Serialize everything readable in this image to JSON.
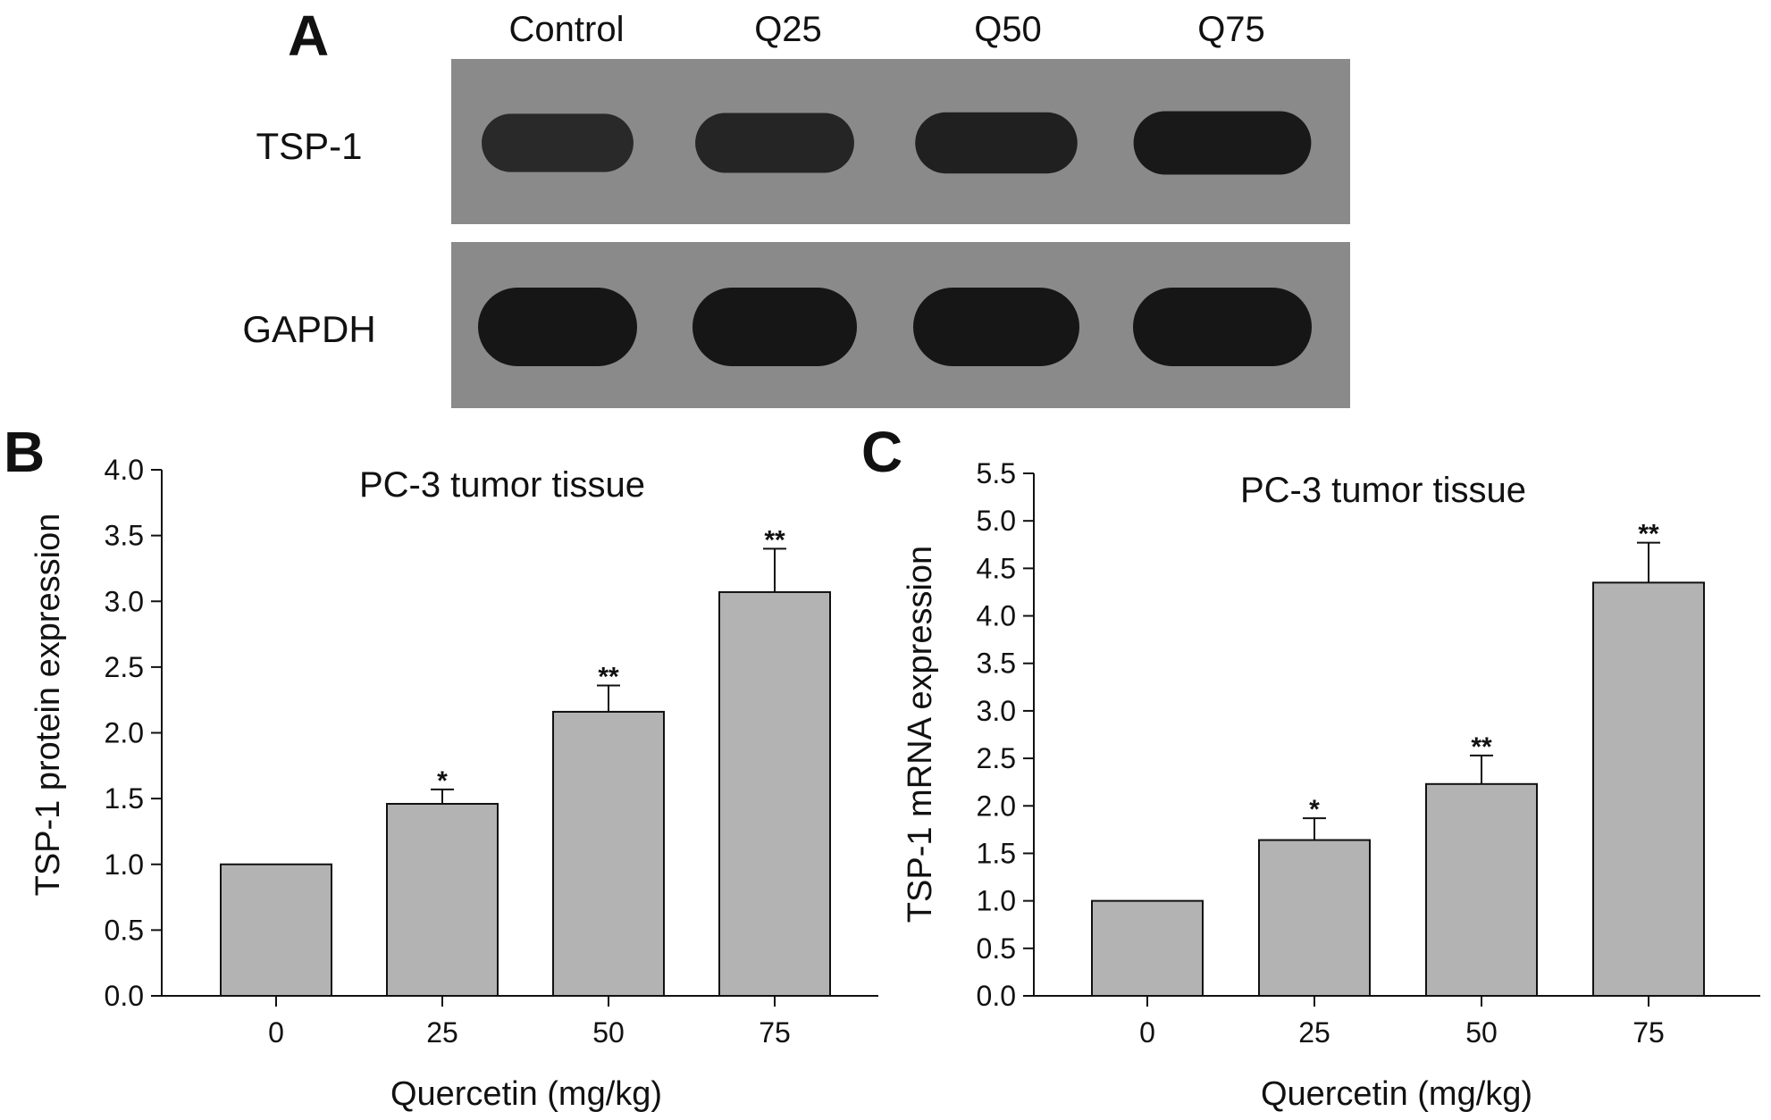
{
  "panel_a": {
    "letter": "A",
    "lanes": [
      "Control",
      "Q25",
      "Q50",
      "Q75"
    ],
    "rows": [
      {
        "label": "TSP-1",
        "band_intensity": [
          0.62,
          0.72,
          0.8,
          0.95
        ]
      },
      {
        "label": "GAPDH",
        "band_intensity": [
          1.0,
          1.0,
          1.0,
          1.0
        ]
      }
    ],
    "blot_background": "#8a8a8a",
    "band_color": "#161616"
  },
  "chart_data": [
    {
      "panel": "B",
      "type": "bar",
      "title": "PC-3 tumor tissue",
      "xlabel": "Quercetin (mg/kg)",
      "ylabel": "TSP-1 protein expression",
      "categories": [
        "0",
        "25",
        "50",
        "75"
      ],
      "values": [
        1.0,
        1.46,
        2.16,
        3.07
      ],
      "errors": [
        0,
        0.11,
        0.2,
        0.33
      ],
      "significance": [
        "",
        "*",
        "**",
        "**"
      ],
      "ylim": [
        0,
        4.0
      ],
      "yticks": [
        "0.0",
        "0.5",
        "1.0",
        "1.5",
        "2.0",
        "2.5",
        "3.0",
        "3.5",
        "4.0"
      ],
      "bar_color": "#b3b3b3"
    },
    {
      "panel": "C",
      "type": "bar",
      "title": "PC-3 tumor tissue",
      "xlabel": "Quercetin (mg/kg)",
      "ylabel": "TSP-1 mRNA expression",
      "categories": [
        "0",
        "25",
        "50",
        "75"
      ],
      "values": [
        1.0,
        1.64,
        2.23,
        4.35
      ],
      "errors": [
        0,
        0.23,
        0.3,
        0.42
      ],
      "significance": [
        "",
        "*",
        "**",
        "**"
      ],
      "ylim": [
        0,
        5.5
      ],
      "yticks": [
        "0.0",
        "0.5",
        "1.0",
        "1.5",
        "2.0",
        "2.5",
        "3.0",
        "3.5",
        "4.0",
        "4.5",
        "5.0",
        "5.5"
      ],
      "bar_color": "#b3b3b3"
    }
  ]
}
